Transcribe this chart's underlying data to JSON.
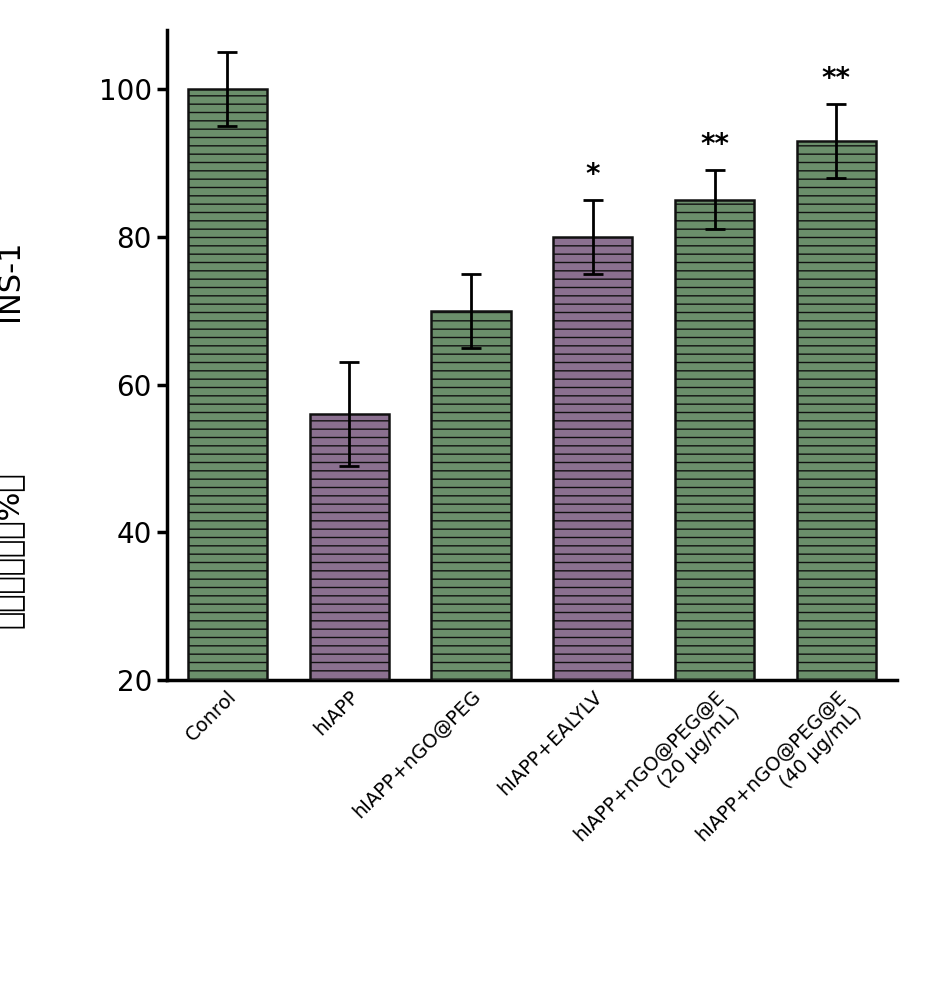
{
  "categories": [
    "Conrol",
    "hIAPP",
    "hIAPP+nGO@PEG",
    "hIAPP+EALYLV",
    "hIAPP+nGO@PEG@E\n(20 μg/mL)",
    "hIAPP+nGO@PEG@E\n(40 μg/mL)"
  ],
  "values": [
    100,
    56,
    70,
    80,
    85,
    93
  ],
  "errors": [
    5,
    7,
    5,
    5,
    4,
    5
  ],
  "bar_colors": [
    "#6b8f6b",
    "#8b7090",
    "#6b8f6b",
    "#8b7090",
    "#6b8f6b",
    "#6b8f6b"
  ],
  "bar_edgecolor": "#111111",
  "hatch": "--",
  "significance": [
    "",
    "",
    "",
    "*",
    "**",
    "**"
  ],
  "ylabel_line1": "INS-1",
  "ylabel_line2": "细胞存活率（%）",
  "ylim": [
    20,
    108
  ],
  "yticks": [
    20,
    40,
    60,
    80,
    100
  ],
  "bar_width": 0.65,
  "axis_fontsize": 22,
  "tick_fontsize": 20,
  "sig_fontsize": 20,
  "xlabel_fontsize": 14,
  "background_color": "#ffffff"
}
